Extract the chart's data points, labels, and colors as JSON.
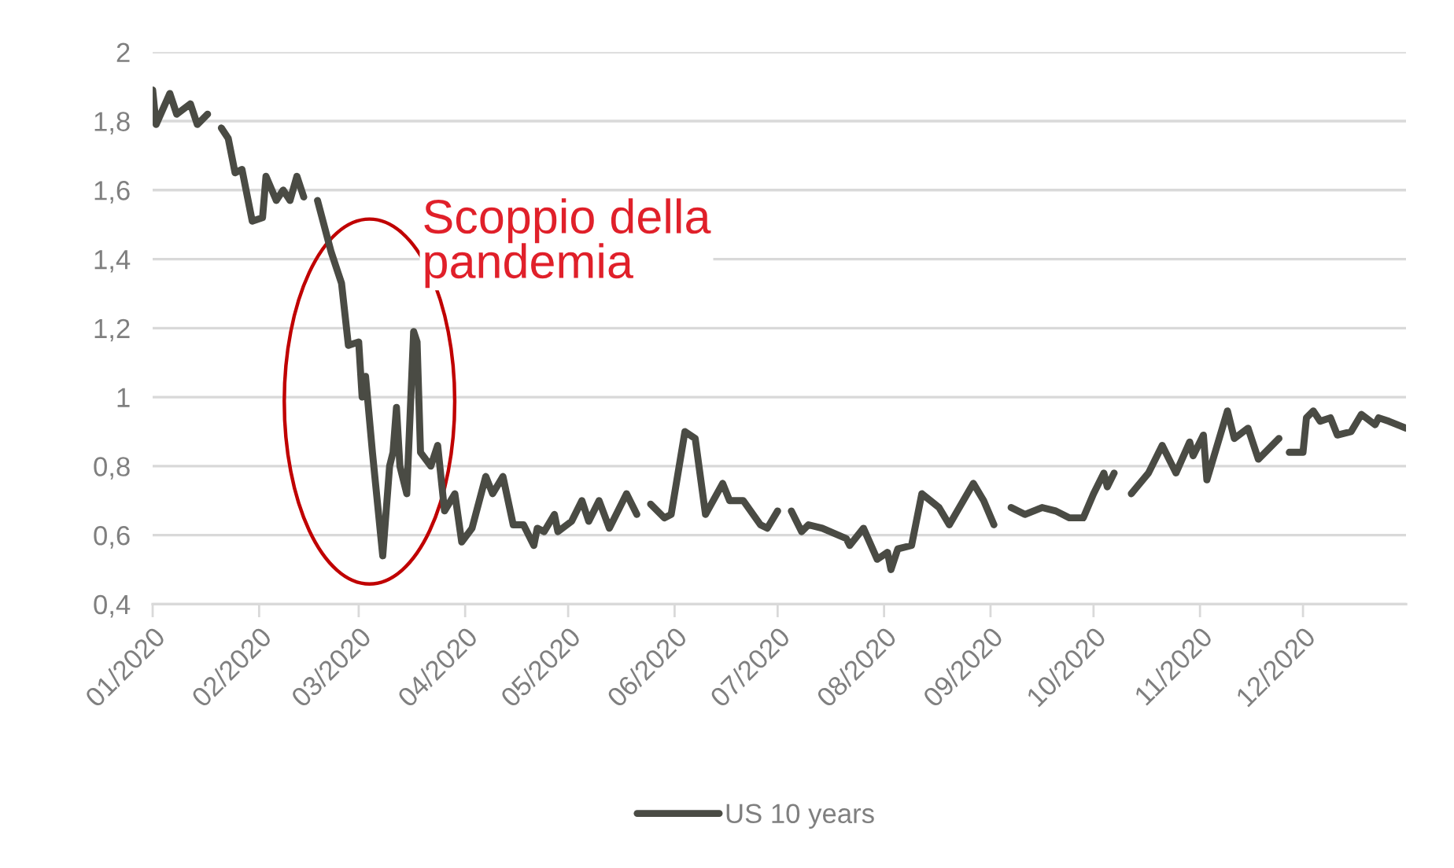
{
  "chart_data": {
    "type": "line",
    "x": [
      "2020-01-01",
      "2020-01-02",
      "2020-01-06",
      "2020-01-08",
      "2020-01-12",
      "2020-01-14",
      "2020-01-17",
      "2020-01-20",
      "2020-01-21",
      "2020-01-23",
      "2020-01-25",
      "2020-01-27",
      "2020-01-30",
      "2020-02-02",
      "2020-02-03",
      "2020-02-06",
      "2020-02-08",
      "2020-02-10",
      "2020-02-12",
      "2020-02-14",
      "2020-02-16",
      "2020-02-18",
      "2020-02-22",
      "2020-02-24",
      "2020-02-25",
      "2020-02-27",
      "2020-03-01",
      "2020-03-02",
      "2020-03-03",
      "2020-03-05",
      "2020-03-08",
      "2020-03-10",
      "2020-03-11",
      "2020-03-12",
      "2020-03-13",
      "2020-03-15",
      "2020-03-17",
      "2020-03-18",
      "2020-03-19",
      "2020-03-22",
      "2020-03-24",
      "2020-03-26",
      "2020-03-29",
      "2020-03-31",
      "2020-04-03",
      "2020-04-07",
      "2020-04-09",
      "2020-04-12",
      "2020-04-15",
      "2020-04-18",
      "2020-04-21",
      "2020-04-22",
      "2020-04-24",
      "2020-04-27",
      "2020-04-28",
      "2020-05-02",
      "2020-05-05",
      "2020-05-07",
      "2020-05-10",
      "2020-05-13",
      "2020-05-18",
      "2020-05-21",
      "2020-05-24",
      "2020-05-25",
      "2020-05-29",
      "2020-05-31",
      "2020-06-04",
      "2020-06-07",
      "2020-06-10",
      "2020-06-15",
      "2020-06-17",
      "2020-06-21",
      "2020-06-26",
      "2020-06-28",
      "2020-07-01",
      "2020-07-03",
      "2020-07-05",
      "2020-07-08",
      "2020-07-10",
      "2020-07-14",
      "2020-07-21",
      "2020-07-22",
      "2020-07-26",
      "2020-07-30",
      "2020-08-02",
      "2020-08-03",
      "2020-08-05",
      "2020-08-09",
      "2020-08-12",
      "2020-08-17",
      "2020-08-20",
      "2020-08-27",
      "2020-08-30",
      "2020-09-02",
      "2020-09-04",
      "2020-09-07",
      "2020-09-11",
      "2020-09-16",
      "2020-09-20",
      "2020-09-24",
      "2020-09-28",
      "2020-10-01",
      "2020-10-04",
      "2020-10-05",
      "2020-10-07",
      "2020-10-10",
      "2020-10-12",
      "2020-10-17",
      "2020-10-21",
      "2020-10-25",
      "2020-10-29",
      "2020-10-30",
      "2020-11-02",
      "2020-11-03",
      "2020-11-09",
      "2020-11-11",
      "2020-11-15",
      "2020-11-18",
      "2020-11-24",
      "2020-11-26",
      "2020-11-27",
      "2020-12-01",
      "2020-12-02",
      "2020-12-04",
      "2020-12-06",
      "2020-12-09",
      "2020-12-11",
      "2020-12-15",
      "2020-12-18",
      "2020-12-22",
      "2020-12-23",
      "2020-12-26",
      "2020-12-31"
    ],
    "series": [
      {
        "name": "US 10 years",
        "color": "#4a4b44",
        "values": [
          1.89,
          1.79,
          1.88,
          1.82,
          1.85,
          1.79,
          1.82,
          null,
          1.78,
          1.75,
          1.65,
          1.66,
          1.51,
          1.52,
          1.64,
          1.57,
          1.6,
          1.57,
          1.64,
          1.58,
          null,
          1.57,
          1.42,
          1.36,
          1.33,
          1.15,
          1.16,
          1.0,
          1.06,
          0.84,
          0.54,
          0.8,
          0.84,
          0.97,
          0.8,
          0.72,
          1.19,
          1.16,
          0.84,
          0.8,
          0.86,
          0.67,
          0.72,
          0.58,
          0.62,
          0.77,
          0.72,
          0.77,
          0.63,
          0.63,
          0.57,
          0.62,
          0.61,
          0.66,
          0.61,
          0.64,
          0.7,
          0.64,
          0.7,
          0.62,
          0.72,
          0.66,
          null,
          0.69,
          0.65,
          0.66,
          0.9,
          0.88,
          0.66,
          0.75,
          0.7,
          0.7,
          0.63,
          0.62,
          0.67,
          null,
          0.67,
          0.61,
          0.63,
          0.62,
          0.59,
          0.57,
          0.62,
          0.53,
          0.55,
          0.5,
          0.56,
          0.57,
          0.72,
          0.68,
          0.63,
          0.75,
          0.7,
          0.63,
          null,
          0.68,
          0.66,
          0.68,
          0.67,
          0.65,
          0.65,
          0.72,
          0.78,
          0.74,
          0.78,
          null,
          0.72,
          0.78,
          0.86,
          0.78,
          0.87,
          0.83,
          0.89,
          0.76,
          0.96,
          0.88,
          0.91,
          0.82,
          0.88,
          null,
          0.84,
          0.84,
          0.94,
          0.96,
          0.93,
          0.94,
          0.89,
          0.9,
          0.95,
          0.92,
          0.94,
          0.93,
          0.91
        ]
      }
    ],
    "xlim": [
      "2020-01-01",
      "2020-12-31"
    ],
    "xticks": [
      {
        "value": "2020-01-01",
        "label": "01/2020"
      },
      {
        "value": "2020-02-01",
        "label": "02/2020"
      },
      {
        "value": "2020-03-01",
        "label": "03/2020"
      },
      {
        "value": "2020-04-01",
        "label": "04/2020"
      },
      {
        "value": "2020-05-01",
        "label": "05/2020"
      },
      {
        "value": "2020-06-01",
        "label": "06/2020"
      },
      {
        "value": "2020-07-01",
        "label": "07/2020"
      },
      {
        "value": "2020-08-01",
        "label": "08/2020"
      },
      {
        "value": "2020-09-01",
        "label": "09/2020"
      },
      {
        "value": "2020-10-01",
        "label": "10/2020"
      },
      {
        "value": "2020-11-01",
        "label": "11/2020"
      },
      {
        "value": "2020-12-01",
        "label": "12/2020"
      }
    ],
    "ylim": [
      0.4,
      2
    ],
    "yticks": [
      {
        "value": 0.4,
        "label": "0,4"
      },
      {
        "value": 0.6,
        "label": "0,6"
      },
      {
        "value": 0.8,
        "label": "0,8"
      },
      1,
      {
        "value": 1.2,
        "label": "1,2"
      },
      {
        "value": 1.4,
        "label": "1,4"
      },
      {
        "value": 1.6,
        "label": "1,6"
      },
      {
        "value": 1.8,
        "label": "1,8"
      },
      2
    ],
    "annotations": [
      "Scoppio della\npandemia"
    ],
    "grid": "y",
    "legend": "bottom",
    "marker": "none",
    "line_style": "solid"
  }
}
